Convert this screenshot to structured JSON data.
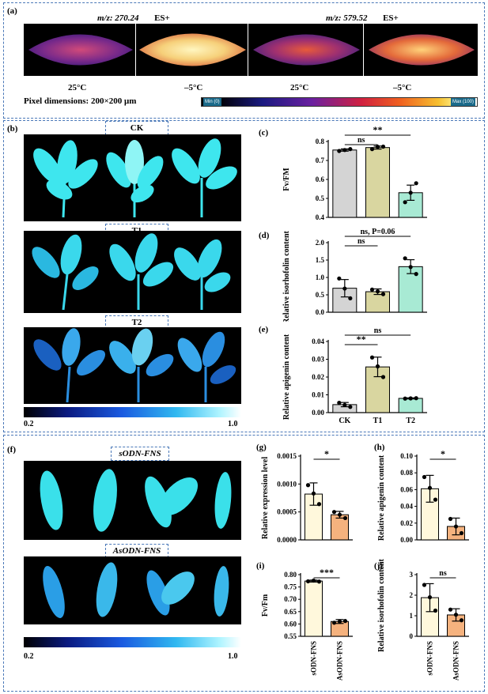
{
  "panel_a": {
    "label": "(a)",
    "mz1": "m/z: 270.24",
    "mode1": "ES+",
    "mz2": "m/z: 579.52",
    "mode2": "ES+",
    "temps": [
      "25°C",
      "–5°C",
      "25°C",
      "–5°C"
    ],
    "pixel_dim": "Pixel dimensions: 200×200 μm",
    "scale_min": "Min (0)",
    "scale_max": "Max (100)"
  },
  "panel_b": {
    "label": "(b)",
    "groups": [
      "CK",
      "T1",
      "T2"
    ],
    "scale_min": "0.2",
    "scale_max": "1.0"
  },
  "panel_f": {
    "label": "(f)",
    "groups": [
      "sODN-FNS",
      "AsODN-FNS"
    ],
    "scale_min": "0.2",
    "scale_max": "1.0"
  },
  "chart_data": [
    {
      "id": "c",
      "label": "(c)",
      "type": "bar",
      "categories": [
        "CK",
        "T1",
        "T2"
      ],
      "values": [
        0.755,
        0.768,
        0.53
      ],
      "errors": [
        0.006,
        0.008,
        0.04
      ],
      "points": [
        [
          0.75,
          0.755,
          0.76
        ],
        [
          0.76,
          0.772,
          0.773
        ],
        [
          0.48,
          0.53,
          0.58
        ]
      ],
      "ylabel": "Fv/FM",
      "ylim": [
        0.4,
        0.8
      ],
      "yticks": [
        "0.4",
        "0.5",
        "0.6",
        "0.7",
        "0.8"
      ],
      "colors": [
        "#d4d4d4",
        "#d9d6a0",
        "#a8ead4"
      ],
      "brackets": [
        {
          "from": 0,
          "to": 1,
          "text": "ns",
          "level": 1
        },
        {
          "from": 0,
          "to": 2,
          "text": "**",
          "level": 2
        }
      ]
    },
    {
      "id": "d",
      "label": "(d)",
      "type": "bar",
      "categories": [
        "CK",
        "T1",
        "T2"
      ],
      "values": [
        0.69,
        0.59,
        1.31
      ],
      "errors": [
        0.25,
        0.08,
        0.2
      ],
      "points": [
        [
          0.97,
          0.68,
          0.4
        ],
        [
          0.65,
          0.6,
          0.52
        ],
        [
          1.55,
          1.3,
          1.1
        ]
      ],
      "ylabel": "Relative isorhofolin content",
      "ylim": [
        0,
        2.0
      ],
      "yticks": [
        "0.0",
        "0.5",
        "1.0",
        "1.5",
        "2.0"
      ],
      "colors": [
        "#d4d4d4",
        "#d9d6a0",
        "#a8ead4"
      ],
      "brackets": [
        {
          "from": 0,
          "to": 1,
          "text": "ns",
          "level": 1
        },
        {
          "from": 0,
          "to": 2,
          "text": "ns, P=0.06",
          "level": 2
        }
      ]
    },
    {
      "id": "e",
      "label": "(e)",
      "type": "bar",
      "categories": [
        "CK",
        "T1",
        "T2"
      ],
      "values": [
        0.0045,
        0.0257,
        0.008
      ],
      "errors": [
        0.0012,
        0.0055,
        0.0003
      ],
      "points": [
        [
          0.0055,
          0.0043,
          0.0032
        ],
        [
          0.031,
          0.026,
          0.02
        ],
        [
          0.0079,
          0.008,
          0.0081
        ]
      ],
      "ylabel": "Relative apigenin content",
      "ylim": [
        0,
        0.04
      ],
      "yticks": [
        "0.00",
        "0.01",
        "0.02",
        "0.03",
        "0.04"
      ],
      "colors": [
        "#d4d4d4",
        "#d9d6a0",
        "#a8ead4"
      ],
      "brackets": [
        {
          "from": 0,
          "to": 1,
          "text": "**",
          "level": 1
        },
        {
          "from": 0,
          "to": 2,
          "text": "ns",
          "level": 2
        }
      ]
    },
    {
      "id": "g",
      "label": "(g)",
      "type": "bar",
      "categories": [
        "sODN-FNS",
        "AsODN-FNS"
      ],
      "values": [
        0.00082,
        0.00045
      ],
      "errors": [
        0.0002,
        6e-05
      ],
      "points": [
        [
          0.00098,
          0.00083,
          0.00064
        ],
        [
          0.0005,
          0.00045,
          0.00039
        ]
      ],
      "ylabel": "Relative expression level",
      "ylim": [
        0,
        0.0015
      ],
      "yticks": [
        "0.0000",
        "0.0005",
        "0.0010",
        "0.0015"
      ],
      "colors": [
        "#fff8dc",
        "#f5b27e"
      ],
      "brackets": [
        {
          "from": 0,
          "to": 1,
          "text": "*",
          "level": 1
        }
      ]
    },
    {
      "id": "h",
      "label": "(h)",
      "type": "bar",
      "categories": [
        "sODN-FNS",
        "AsODN-FNS"
      ],
      "values": [
        0.061,
        0.016
      ],
      "errors": [
        0.016,
        0.01
      ],
      "points": [
        [
          0.075,
          0.062,
          0.048
        ],
        [
          0.025,
          0.016,
          0.008
        ]
      ],
      "ylabel": "Relative apigenin content",
      "ylim": [
        0,
        0.1
      ],
      "yticks": [
        "0.00",
        "0.02",
        "0.04",
        "0.06",
        "0.08",
        "0.10"
      ],
      "colors": [
        "#fff8dc",
        "#f5b27e"
      ],
      "brackets": [
        {
          "from": 0,
          "to": 1,
          "text": "*",
          "level": 1
        }
      ]
    },
    {
      "id": "i",
      "label": "(i)",
      "type": "bar",
      "categories": [
        "sODN-FNS",
        "AsODN-FNS"
      ],
      "values": [
        0.774,
        0.61
      ],
      "errors": [
        0.004,
        0.008
      ],
      "points": [
        [
          0.773,
          0.776,
          0.772
        ],
        [
          0.605,
          0.61,
          0.612
        ]
      ],
      "ylabel": "Fv/Fm",
      "ylim": [
        0.55,
        0.8
      ],
      "yticks": [
        "0.55",
        "0.60",
        "0.65",
        "0.70",
        "0.75",
        "0.80"
      ],
      "colors": [
        "#fff8dc",
        "#f5b27e"
      ],
      "brackets": [
        {
          "from": 0,
          "to": 1,
          "text": "***",
          "level": 1
        }
      ]
    },
    {
      "id": "j",
      "label": "(j)",
      "type": "bar",
      "categories": [
        "sODN-FNS",
        "AsODN-FNS"
      ],
      "values": [
        1.88,
        1.04
      ],
      "errors": [
        0.68,
        0.3
      ],
      "points": [
        [
          2.5,
          1.9,
          1.25
        ],
        [
          1.3,
          1.05,
          0.78
        ]
      ],
      "ylabel": "Relative isorhofolin content",
      "ylim": [
        0,
        3
      ],
      "yticks": [
        "0",
        "1",
        "2",
        "3"
      ],
      "colors": [
        "#fff8dc",
        "#f5b27e"
      ],
      "brackets": [
        {
          "from": 0,
          "to": 1,
          "text": "ns",
          "level": 1
        }
      ]
    }
  ]
}
